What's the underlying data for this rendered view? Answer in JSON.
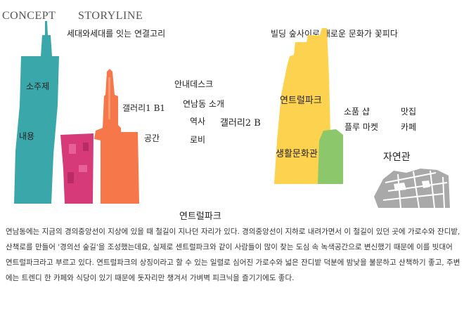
{
  "header": {
    "concept": "CONCEPT",
    "storyline": "STORYLINE",
    "subtitle_left": "세대와세대를 잇는 연결고리",
    "subtitle_right": "빌딩 숲사이로 새로운 문화가 꽃피다"
  },
  "left_labels": {
    "theme": "소주제",
    "content": "내용",
    "gallery_b1": "갤러리1  B1",
    "space": "공간",
    "info_desk": "안내데스크",
    "yeonnam_intro": "연남동 소개",
    "history": "역사",
    "gallery_2b": "갤러리2 B",
    "lobby": "로비"
  },
  "right_labels": {
    "yeontral_park": "연트럴파크",
    "props_shop": "소품 샵",
    "restaurant": "맛집",
    "flea_market": "플루 마켓",
    "cafe": "카페",
    "life_culture": "생활문화관",
    "nature": "자연관"
  },
  "section_title": "연트럴파크",
  "body_lines": [
    "연남동에는 지금의 경의중앙선이 지상에 있을 때 철길이 지나던 자리가 있다. 경의중앙선이 지하로 내려가면서 이 철길이 있던 곳에 가로수와 잔디밭,",
    "산책로를 만들어 '경의선 숲길'을 조성했는데요,  실제로 센트럴파크와 같이 사람들이 많이 찾는 도심 속 녹색공간으로 변신했기 때문에 이를 빗대어",
    "연트럴파크라고 부르고 있다.  연트럴파크의 상징이라고 할 수 있는 일렬로 심어진 가로수와 넓은 잔디밭 덕분에 밤낮을 불문하고 산책하기 좋고, 주변",
    "에는 트렌디 한 카페와 식당이 있기 때문에 돗자리만 챙겨서 가벼벽 피크닉을 즐기기에도 좋다."
  ],
  "colors": {
    "teal": "#3aa7aa",
    "magenta": "#d63a78",
    "orange": "#f5774a",
    "yellow": "#fdd24f",
    "green": "#8cc86b",
    "map_gray": "#a9a9a9"
  }
}
